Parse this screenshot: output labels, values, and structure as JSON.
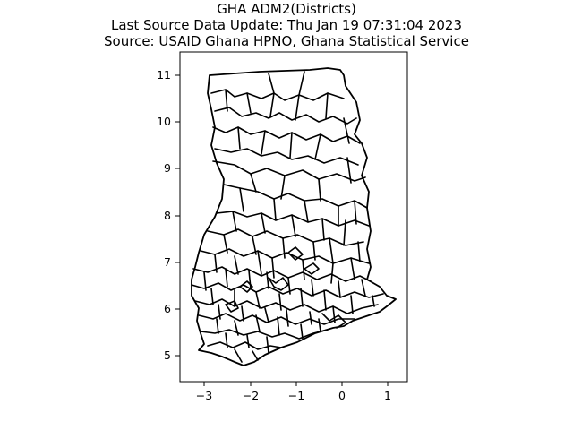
{
  "title": {
    "line1": "GHA ADM2(Districts)",
    "line2": "Last Source Data Update: Thu Jan 19 07:31:04 2023",
    "line3": "Source: USAID Ghana HPNO, Ghana Statistical Service"
  },
  "chart_data": {
    "type": "map",
    "title": "GHA ADM2(Districts)",
    "subtitle": [
      "Last Source Data Update: Thu Jan 19 07:31:04 2023",
      "Source: USAID Ghana HPNO, Ghana Statistical Service"
    ],
    "xlabel": "",
    "ylabel": "",
    "xlim": [
      -3.45,
      1.45
    ],
    "ylim": [
      4.4,
      11.4
    ],
    "x_ticks": [
      -3,
      -2,
      -1,
      0,
      1
    ],
    "x_tick_labels": [
      "−3",
      "−2",
      "−1",
      "0",
      "1"
    ],
    "y_ticks": [
      5,
      6,
      7,
      8,
      9,
      10,
      11
    ],
    "y_tick_labels": [
      "5",
      "6",
      "7",
      "8",
      "9",
      "10",
      "11"
    ],
    "grid": false,
    "fill": "#ffffff",
    "edge_color": "#000000"
  }
}
